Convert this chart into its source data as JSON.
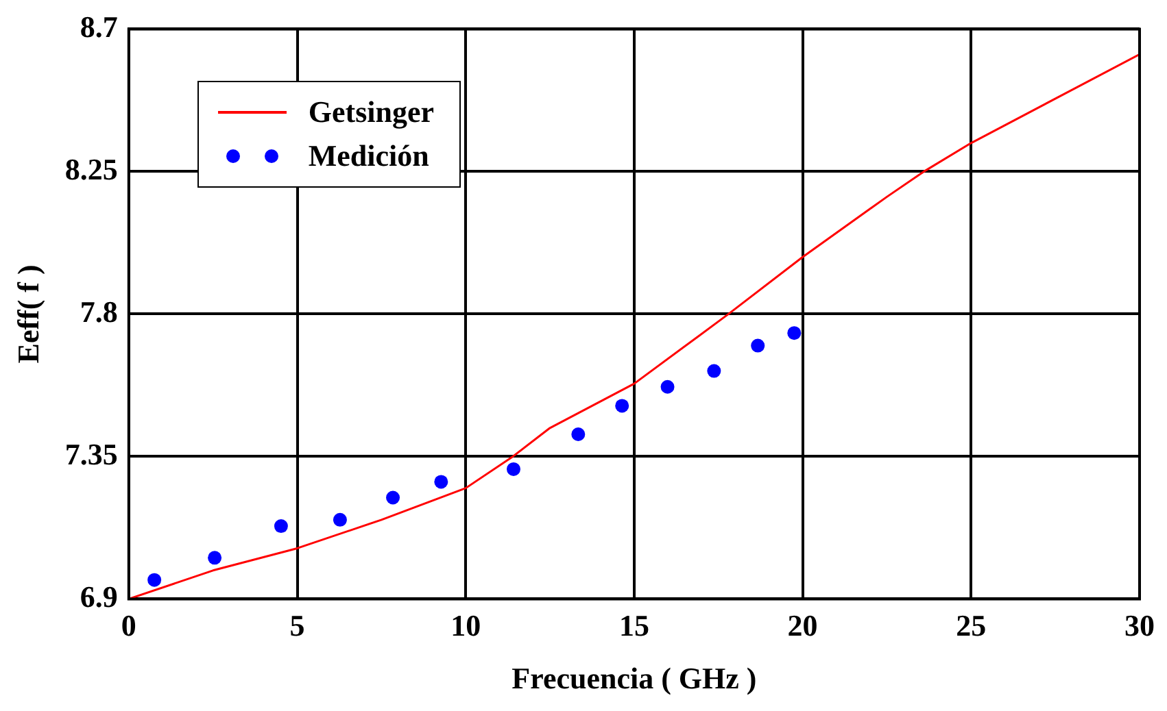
{
  "chart_data": {
    "type": "scatter",
    "xlabel": "Frecuencia ( GHz )",
    "ylabel": "Eeff( f )",
    "xlim": [
      0,
      30
    ],
    "xticks": [
      0,
      5,
      10,
      15,
      20,
      25,
      30
    ],
    "ylim": [
      6.9,
      8.7
    ],
    "yticks": [
      6.9,
      7.35,
      7.8,
      8.25,
      8.7
    ],
    "grid": true,
    "legend": "top left",
    "series": [
      {
        "name": "Getsinger",
        "type": "line",
        "color": "#ff0000",
        "marker": "none",
        "x": [
          0,
          2.5,
          5,
          7.5,
          10,
          11.4,
          12.5,
          15,
          17.8,
          20,
          22.5,
          23.6,
          25,
          30
        ],
        "values": [
          6.9,
          6.99,
          7.06,
          7.15,
          7.25,
          7.35,
          7.44,
          7.58,
          7.8,
          7.98,
          8.17,
          8.25,
          8.34,
          8.62
        ]
      },
      {
        "name": "Medición",
        "type": "scatter",
        "color": "#0000ff",
        "marker": "circle",
        "x": [
          0.76,
          2.55,
          4.52,
          6.27,
          7.84,
          9.27,
          11.42,
          13.34,
          14.64,
          15.99,
          17.37,
          18.67,
          19.75
        ],
        "values": [
          6.96,
          7.03,
          7.13,
          7.15,
          7.22,
          7.27,
          7.31,
          7.42,
          7.51,
          7.57,
          7.62,
          7.7,
          7.74
        ]
      }
    ]
  }
}
